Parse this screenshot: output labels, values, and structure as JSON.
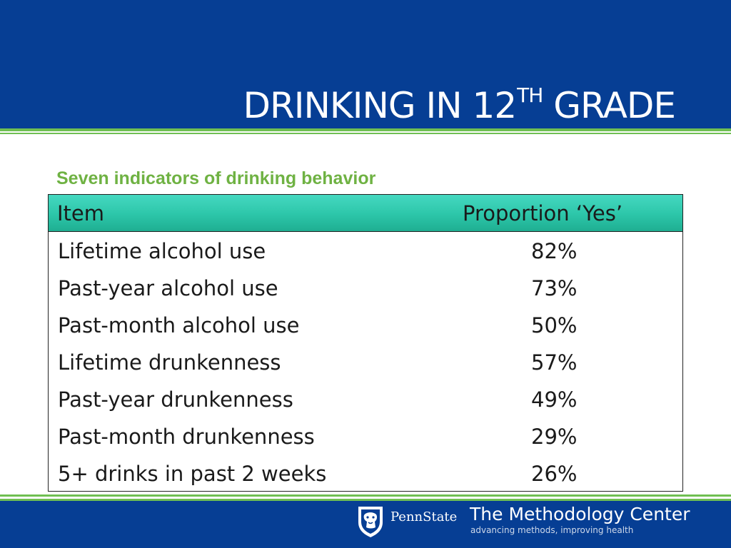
{
  "header": {
    "title_main": "DRINKING IN 12",
    "title_sup": "TH",
    "title_end": " GRADE"
  },
  "subtitle": "Seven indicators of drinking behavior",
  "table": {
    "columns": [
      "Item",
      "Proportion ‘Yes’"
    ],
    "rows": [
      {
        "item": "Lifetime alcohol use",
        "value": "82%"
      },
      {
        "item": "Past-year alcohol use",
        "value": "73%"
      },
      {
        "item": "Past-month alcohol use",
        "value": "50%"
      },
      {
        "item": "Lifetime drunkenness",
        "value": "57%"
      },
      {
        "item": "Past-year drunkenness",
        "value": "49%"
      },
      {
        "item": "Past-month drunkenness",
        "value": "29%"
      },
      {
        "item": "5+ drinks in past 2 weeks",
        "value": "26%"
      }
    ]
  },
  "footer": {
    "university": "PennState",
    "center": "The Methodology Center",
    "tagline": "advancing methods, improving health"
  },
  "colors": {
    "header_blue": "#063e94",
    "accent_green": "#6fbf52",
    "table_header_teal": "#2cc6a9"
  }
}
